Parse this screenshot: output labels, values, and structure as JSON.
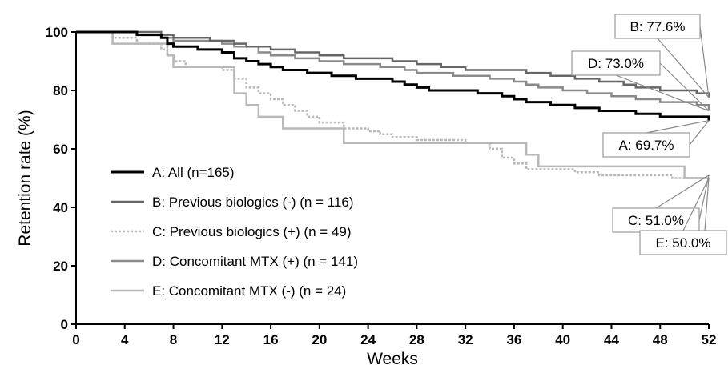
{
  "chart_data": {
    "type": "line",
    "title": "",
    "xlabel": "Weeks",
    "ylabel": "Retention rate (%)",
    "xlim": [
      0,
      52
    ],
    "ylim": [
      0,
      100
    ],
    "x_ticks": [
      0,
      4,
      8,
      12,
      16,
      20,
      24,
      28,
      32,
      36,
      40,
      44,
      48,
      52
    ],
    "y_ticks": [
      0,
      20,
      40,
      60,
      80,
      100
    ],
    "grid": false,
    "legend_position": "lower-left",
    "series": [
      {
        "name": "A: All (n=165)",
        "color": "#000000",
        "style": "solid",
        "points": [
          [
            0,
            100
          ],
          [
            2,
            100
          ],
          [
            5,
            99
          ],
          [
            7,
            98
          ],
          [
            7.5,
            96
          ],
          [
            8,
            95
          ],
          [
            10,
            94
          ],
          [
            12,
            93
          ],
          [
            13,
            91
          ],
          [
            14,
            90
          ],
          [
            15,
            89
          ],
          [
            16,
            88
          ],
          [
            17,
            87
          ],
          [
            19,
            86
          ],
          [
            21,
            85
          ],
          [
            23,
            84
          ],
          [
            26,
            83
          ],
          [
            27,
            82
          ],
          [
            28,
            81
          ],
          [
            29,
            80
          ],
          [
            33,
            79
          ],
          [
            35,
            78
          ],
          [
            36,
            77
          ],
          [
            37,
            76
          ],
          [
            39,
            75
          ],
          [
            41,
            74
          ],
          [
            43,
            73
          ],
          [
            46,
            72
          ],
          [
            48,
            71
          ],
          [
            52,
            69.7
          ]
        ],
        "end_label": "A: 69.7%"
      },
      {
        "name": "B: Previous biologics (-) (n = 116)",
        "color": "#666666",
        "style": "solid",
        "points": [
          [
            0,
            100
          ],
          [
            2,
            100
          ],
          [
            5,
            100
          ],
          [
            7,
            99
          ],
          [
            8,
            98
          ],
          [
            11,
            97
          ],
          [
            13,
            96
          ],
          [
            14,
            95
          ],
          [
            16,
            94
          ],
          [
            18,
            93
          ],
          [
            20,
            92
          ],
          [
            22,
            91
          ],
          [
            26,
            90
          ],
          [
            28,
            89
          ],
          [
            30,
            88
          ],
          [
            32,
            87
          ],
          [
            37,
            86
          ],
          [
            39,
            85
          ],
          [
            41,
            84
          ],
          [
            43,
            83
          ],
          [
            45,
            82
          ],
          [
            46,
            81
          ],
          [
            48,
            80
          ],
          [
            51,
            79
          ],
          [
            52,
            77.6
          ]
        ],
        "end_label": "B: 77.6%"
      },
      {
        "name": "C: Previous biologics (+) (n = 49)",
        "color": "#b8b8b8",
        "style": "dashed",
        "points": [
          [
            0,
            100
          ],
          [
            2,
            100
          ],
          [
            3,
            98
          ],
          [
            5,
            96
          ],
          [
            7,
            94
          ],
          [
            7.5,
            92
          ],
          [
            8,
            90
          ],
          [
            9,
            88
          ],
          [
            12,
            87
          ],
          [
            13,
            84
          ],
          [
            14,
            81
          ],
          [
            15,
            79
          ],
          [
            16,
            77
          ],
          [
            17,
            75
          ],
          [
            18,
            73
          ],
          [
            19,
            71
          ],
          [
            20,
            69
          ],
          [
            22,
            67
          ],
          [
            24,
            66
          ],
          [
            25,
            65
          ],
          [
            26,
            64
          ],
          [
            28,
            63
          ],
          [
            32,
            62
          ],
          [
            34,
            60
          ],
          [
            35,
            57
          ],
          [
            36,
            55
          ],
          [
            37,
            53
          ],
          [
            41,
            52
          ],
          [
            43,
            51
          ],
          [
            49,
            50
          ],
          [
            52,
            51.0
          ]
        ],
        "end_label": "C: 51.0%"
      },
      {
        "name": "D: Concomitant MTX (+) (n = 141)",
        "color": "#8a8a8a",
        "style": "solid",
        "points": [
          [
            0,
            100
          ],
          [
            3,
            100
          ],
          [
            5,
            99
          ],
          [
            7,
            98
          ],
          [
            8,
            97
          ],
          [
            12,
            96
          ],
          [
            13,
            95
          ],
          [
            15,
            93
          ],
          [
            16,
            92
          ],
          [
            18,
            91
          ],
          [
            20,
            90
          ],
          [
            22,
            89
          ],
          [
            25,
            88
          ],
          [
            27,
            87
          ],
          [
            28,
            86
          ],
          [
            31,
            85
          ],
          [
            34,
            84
          ],
          [
            36,
            83
          ],
          [
            37,
            82
          ],
          [
            38,
            81
          ],
          [
            40,
            80
          ],
          [
            42,
            79
          ],
          [
            44,
            78
          ],
          [
            46,
            77
          ],
          [
            48,
            76
          ],
          [
            51,
            75
          ],
          [
            52,
            73.0
          ]
        ],
        "end_label": "D: 73.0%"
      },
      {
        "name": "E: Concomitant MTX (-) (n = 24)",
        "color": "#b8b8b8",
        "style": "solid",
        "points": [
          [
            0,
            100
          ],
          [
            2,
            100
          ],
          [
            3,
            96
          ],
          [
            7,
            96
          ],
          [
            7.5,
            92
          ],
          [
            8,
            88
          ],
          [
            12,
            88
          ],
          [
            13,
            79
          ],
          [
            14,
            75
          ],
          [
            15,
            71
          ],
          [
            16,
            71
          ],
          [
            17,
            67
          ],
          [
            20,
            67
          ],
          [
            22,
            62
          ],
          [
            36,
            62
          ],
          [
            37,
            58
          ],
          [
            38,
            54
          ],
          [
            49,
            54
          ],
          [
            50,
            50
          ],
          [
            52,
            50.0
          ]
        ],
        "end_label": "E: 50.0%"
      }
    ]
  }
}
